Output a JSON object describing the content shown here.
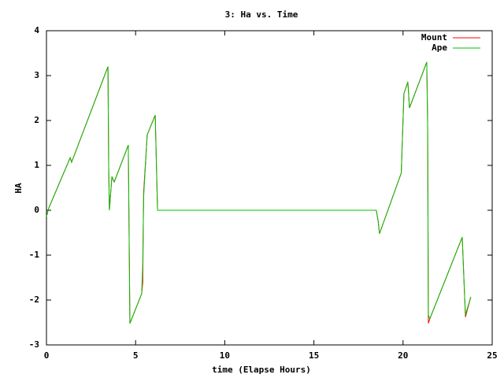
{
  "chart_data": {
    "type": "line",
    "title": "3: Ha vs. Time",
    "x_label": "time (Elapse Hours)",
    "y_label": "HA",
    "x": [
      0,
      0.13,
      1.33,
      1.41,
      3.45,
      3.49,
      3.53,
      3.67,
      3.8,
      4.59,
      4.68,
      5.34,
      5.4,
      5.45,
      5.65,
      6.1,
      6.23,
      18.5,
      18.6,
      18.68,
      19.9,
      20.05,
      20.27,
      20.36,
      21.33,
      21.38,
      21.42,
      21.5,
      23.32,
      23.45,
      23.5,
      23.8
    ],
    "series": [
      {
        "name": "Mount",
        "color": "#ff0000",
        "values": [
          -0.14,
          0.05,
          1.17,
          1.07,
          3.2,
          0.95,
          0.0,
          0.75,
          0.63,
          1.45,
          -2.52,
          -1.86,
          -1.6,
          0.4,
          1.68,
          2.12,
          0.0,
          0.0,
          -0.23,
          -0.52,
          0.83,
          2.6,
          2.86,
          2.28,
          3.3,
          1.89,
          -2.52,
          -2.42,
          -0.6,
          -1.88,
          -2.38,
          -1.93
        ]
      },
      {
        "name": "Ape",
        "color": "#00c000",
        "values": [
          -0.14,
          0.05,
          1.17,
          1.07,
          3.2,
          0.95,
          0.0,
          0.75,
          0.63,
          1.45,
          -2.52,
          -1.86,
          -1.2,
          0.3,
          1.68,
          2.12,
          0.0,
          0.0,
          -0.23,
          -0.52,
          0.83,
          2.6,
          2.86,
          2.28,
          3.3,
          1.89,
          -2.33,
          -2.42,
          -0.6,
          -1.88,
          -2.33,
          -1.93
        ]
      }
    ],
    "xlim": [
      0,
      25
    ],
    "xticks": [
      0,
      5,
      10,
      15,
      20,
      25
    ],
    "ylim": [
      -3,
      4
    ],
    "yticks": [
      -3,
      -2,
      -1,
      0,
      1,
      2,
      3,
      4
    ],
    "grid": false,
    "legend_position": "top-right"
  }
}
